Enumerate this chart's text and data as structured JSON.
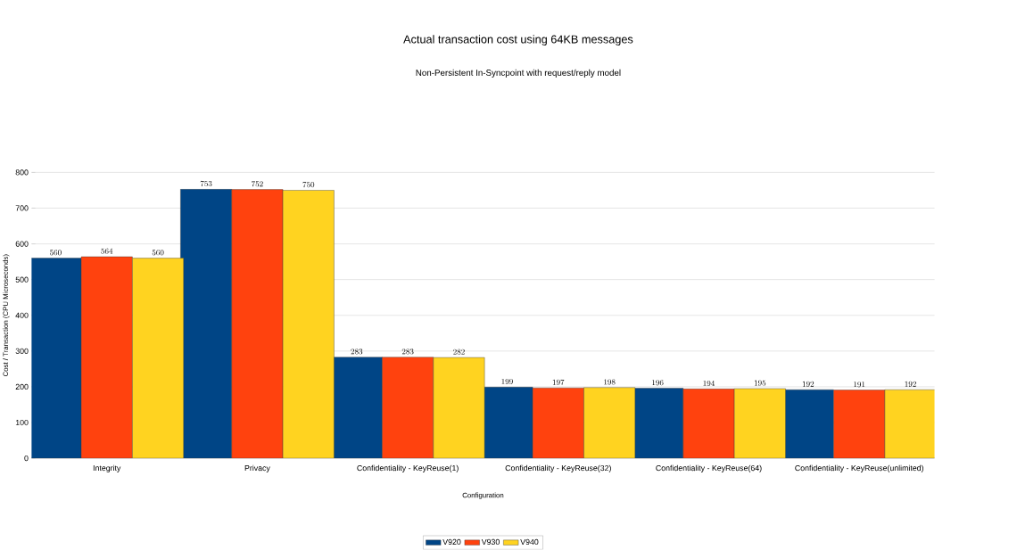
{
  "chart_data": {
    "type": "bar",
    "title": "Actual transaction cost using 64KB messages",
    "subtitle": "Non-Persistent In-Syncpoint with request/reply model",
    "xlabel": "Configuration",
    "ylabel": "Cost / Transaction (CPU Microseconds)",
    "categories": [
      "Integrity",
      "Privacy",
      "Confidentiality - KeyReuse(1)",
      "Confidentiality - KeyReuse(32)",
      "Confidentiality - KeyReuse(64)",
      "Confidentiality - KeyReuse(unlimited)"
    ],
    "series": [
      {
        "name": "V920",
        "color": "#004586",
        "values": [
          560,
          753,
          283,
          199,
          196,
          192
        ]
      },
      {
        "name": "V930",
        "color": "#ff420e",
        "values": [
          564,
          752,
          283,
          197,
          194,
          191
        ]
      },
      {
        "name": "V940",
        "color": "#ffd320",
        "values": [
          560,
          750,
          282,
          198,
          195,
          192
        ]
      }
    ],
    "ylim": [
      0,
      800
    ],
    "yticks": [
      0,
      100,
      200,
      300,
      400,
      500,
      600,
      700,
      800
    ],
    "grid": "y",
    "legend": "bottom",
    "data_labels": true
  }
}
